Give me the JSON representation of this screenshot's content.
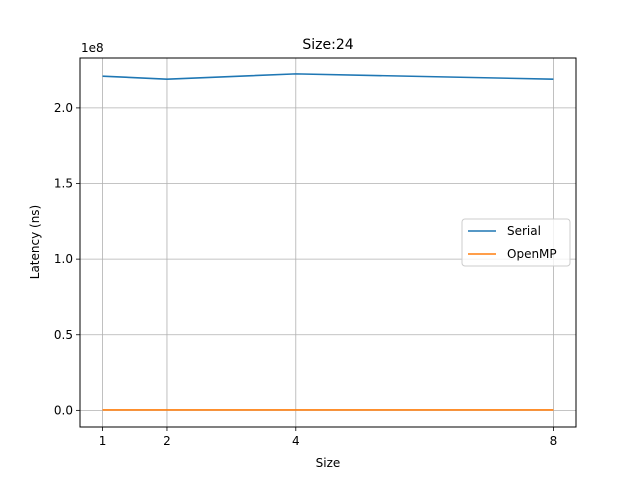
{
  "chart_data": {
    "type": "line",
    "title": "Size:24",
    "xlabel": "Size",
    "ylabel": "Latency (ns)",
    "y_offset_label": "1e8",
    "x": [
      1,
      2,
      4,
      8
    ],
    "x_ticks": [
      1,
      2,
      4,
      8
    ],
    "x_tick_labels": [
      "1",
      "2",
      "4",
      "8"
    ],
    "xlim": [
      0.65,
      8.35
    ],
    "y_scale": 100000000,
    "y_ticks": [
      0.0,
      0.5,
      1.0,
      1.5,
      2.0
    ],
    "y_tick_labels": [
      "0.0",
      "0.5",
      "1.0",
      "1.5",
      "2.0"
    ],
    "ylim": [
      -0.11,
      2.33
    ],
    "grid": true,
    "legend_position": "center-right",
    "series": [
      {
        "name": "Serial",
        "color": "#1f77b4",
        "values": [
          221000000,
          219000000,
          222500000,
          219000000
        ]
      },
      {
        "name": "OpenMP",
        "color": "#ff7f0e",
        "values": [
          300000,
          300000,
          300000,
          300000
        ]
      }
    ]
  }
}
